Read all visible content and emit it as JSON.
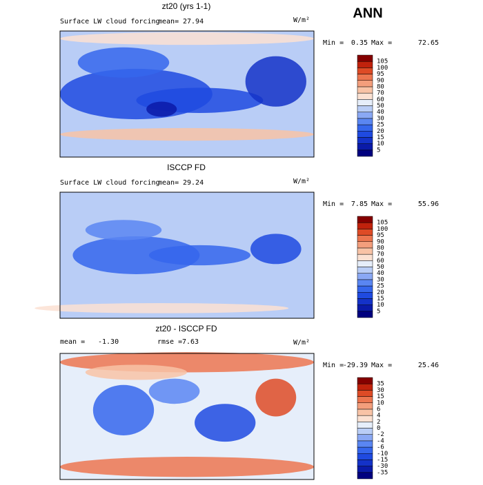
{
  "header": {
    "season": "ANN"
  },
  "panels": [
    {
      "title": "zt20 (yrs 1-1)",
      "variable": "Surface LW cloud forcing",
      "mean_label": "mean=",
      "mean": "27.94",
      "units": "W/m²",
      "min_label": "Min =",
      "min": "0.35",
      "max_label": "Max =",
      "max": "72.65",
      "colorbar": {
        "labels": [
          5,
          10,
          15,
          20,
          25,
          30,
          40,
          50,
          60,
          70,
          80,
          90,
          95,
          100,
          105
        ],
        "colors": [
          "#00007f",
          "#0a1aa8",
          "#1432c8",
          "#1f4ae0",
          "#3566ec",
          "#5a86f2",
          "#8aa8f4",
          "#b9cdf6",
          "#e6eefa",
          "#fbe1d2",
          "#f8c3a6",
          "#f39e7c",
          "#ec7650",
          "#de4b26",
          "#c0220c",
          "#850000"
        ]
      }
    },
    {
      "title": "ISCCP FD",
      "variable": "Surface LW cloud forcing",
      "mean_label": "mean=",
      "mean": "29.24",
      "units": "W/m²",
      "min_label": "Min =",
      "min": "7.85",
      "max_label": "Max =",
      "max": "55.96",
      "colorbar": {
        "labels": [
          5,
          10,
          15,
          20,
          25,
          30,
          40,
          50,
          60,
          70,
          80,
          90,
          95,
          100,
          105
        ],
        "colors": [
          "#00007f",
          "#0a1aa8",
          "#1432c8",
          "#1f4ae0",
          "#3566ec",
          "#5a86f2",
          "#8aa8f4",
          "#b9cdf6",
          "#e6eefa",
          "#fbe1d2",
          "#f8c3a6",
          "#f39e7c",
          "#ec7650",
          "#de4b26",
          "#c0220c",
          "#850000"
        ]
      }
    },
    {
      "title": "zt20 - ISCCP FD",
      "mean_label": "mean =",
      "mean": "-1.30",
      "rmse_label": "rmse =",
      "rmse": "7.63",
      "units": "W/m²",
      "min_label": "Min =",
      "min": "-29.39",
      "max_label": "Max =",
      "max": "25.46",
      "colorbar": {
        "labels": [
          -35,
          -30,
          -15,
          -10,
          -6,
          -4,
          -2,
          0,
          2,
          4,
          6,
          10,
          15,
          30,
          35
        ],
        "colors": [
          "#00007f",
          "#0a1aa8",
          "#1432c8",
          "#1f4ae0",
          "#3566ec",
          "#5a86f2",
          "#8aa8f4",
          "#b9cdf6",
          "#e6eefa",
          "#fbe1d2",
          "#f8c3a6",
          "#f39e7c",
          "#ec7650",
          "#de4b26",
          "#c0220c",
          "#850000"
        ]
      }
    }
  ]
}
